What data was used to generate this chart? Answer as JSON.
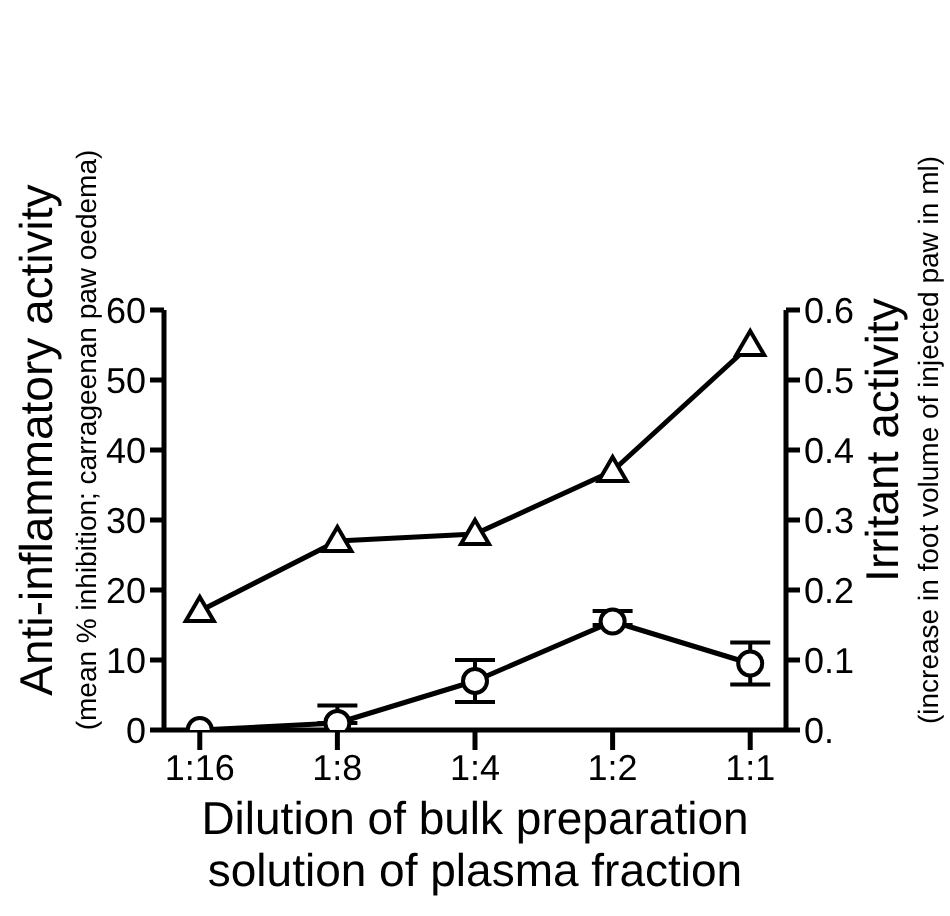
{
  "chart_data": {
    "type": "line",
    "categories": [
      "1:16",
      "1:8",
      "1:4",
      "1:2",
      "1:1"
    ],
    "xlabel": "Dilution of bulk preparation\nsolution of plasma fraction",
    "ylabel": "Anti-inflammatory activity\n(mean % inhibition; carrageenan paw oedema)",
    "y2label": "Irritant activity\n(increase in foot volume of injected paw in ml)",
    "ylim": [
      0,
      60
    ],
    "yticks": [
      0,
      10,
      20,
      30,
      40,
      50,
      60
    ],
    "y2lim": [
      0,
      0.6
    ],
    "y2ticks": [
      {
        "value": 0,
        "label": "0."
      },
      0.1,
      0.2,
      0.3,
      0.4,
      0.5,
      0.6
    ],
    "series": [
      {
        "color": "#000000",
        "marker": "triangle",
        "values": [
          17,
          27,
          28,
          37,
          55
        ]
      },
      {
        "color": "#000000",
        "marker": "circle",
        "axis": "y2",
        "values": [
          0,
          0.01,
          0.07,
          0.155,
          0.095
        ],
        "errors": [
          null,
          [
            0.01,
            0.035
          ],
          [
            0.04,
            0.1
          ],
          [
            0.15,
            0.17
          ],
          [
            0.065,
            0.125
          ]
        ]
      }
    ],
    "grid": false,
    "legend": false,
    "line_style": "solid"
  }
}
